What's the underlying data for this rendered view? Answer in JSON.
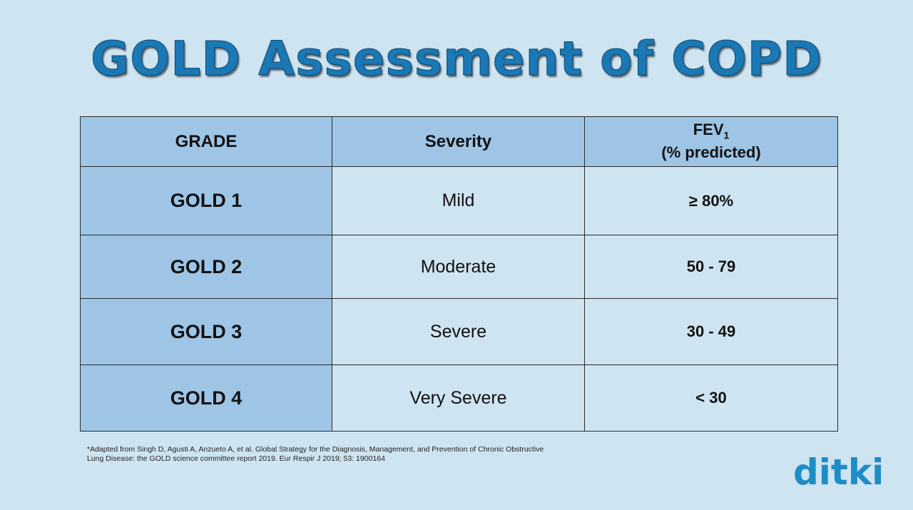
{
  "title": "GOLD Assessment of COPD",
  "table": {
    "headers": {
      "grade": "GRADE",
      "severity": "Severity",
      "fev_main": "FEV",
      "fev_sub": "1",
      "fev_line2": "(% predicted)"
    },
    "rows": [
      {
        "grade": "GOLD 1",
        "severity": "Mild",
        "fev": "≥ 80%"
      },
      {
        "grade": "GOLD 2",
        "severity": "Moderate",
        "fev": "50 - 79"
      },
      {
        "grade": "GOLD 3",
        "severity": "Severe",
        "fev": "30 - 49"
      },
      {
        "grade": "GOLD 4",
        "severity": "Very Severe",
        "fev": "< 30"
      }
    ]
  },
  "footnote": {
    "line1": "*Adapted from Singh D, Agusti A, Anzueto A, et al. Global Strategy for the Diagnosis, Management, and Prevention of Chronic Obstructive",
    "line2": "Lung Disease: the GOLD science committee report 2019. Eur Respir J 2019; 53: 1900164"
  },
  "logo": {
    "text": "ditki"
  },
  "colors": {
    "background": "#cfe4f1",
    "header_cell": "#9ec5e6",
    "title": "#1a78b5",
    "logo": "#1e8dc6"
  }
}
